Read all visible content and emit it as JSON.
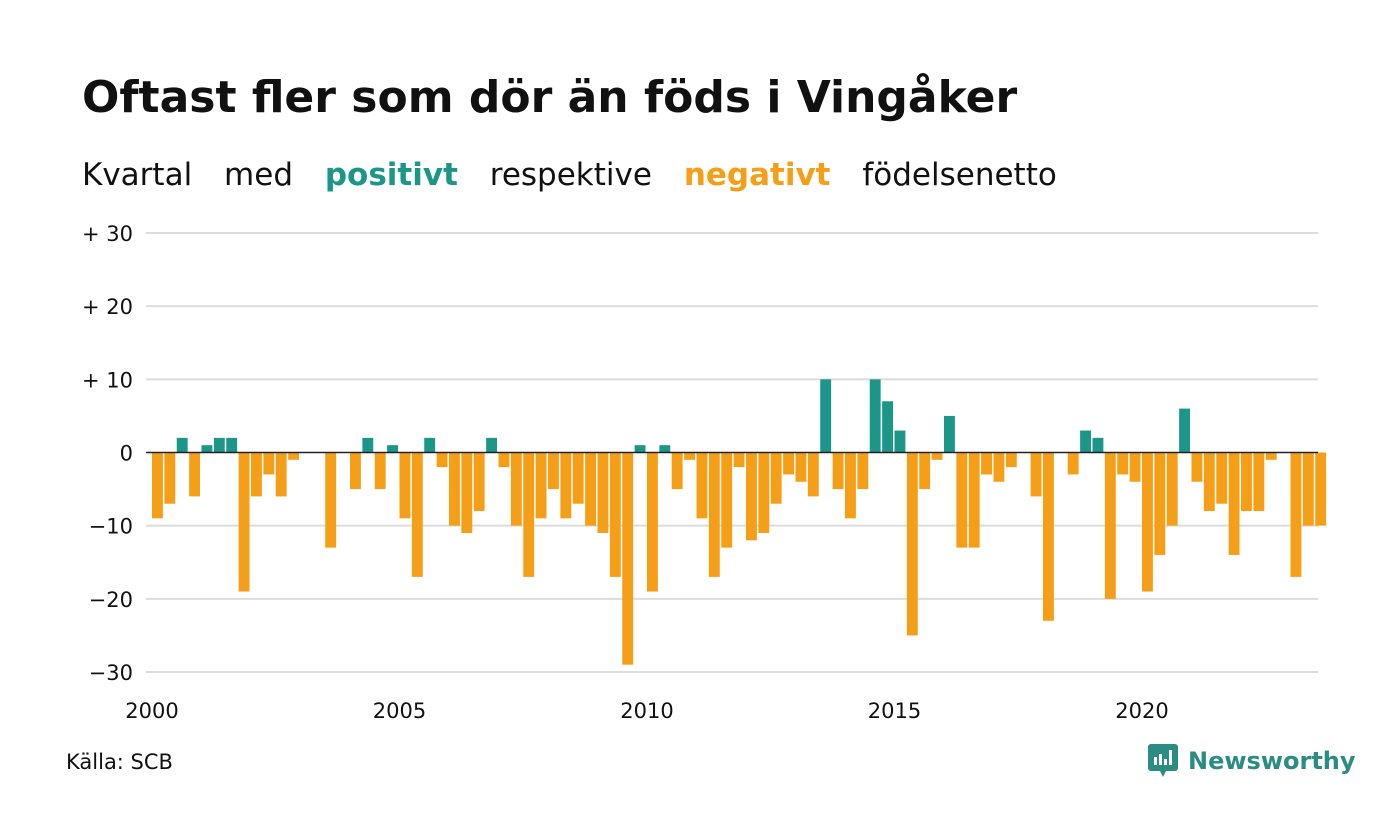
{
  "title": "Oftast fler som dör än föds i Vingåker",
  "subtitle": {
    "part1": "Kvartal",
    "part2": "med",
    "positive": "positivt",
    "part3": "respektive",
    "negative": "negativt",
    "part4": "födelsenetto"
  },
  "source": "Källa: SCB",
  "brand": "Newsworthy",
  "colors": {
    "positive": "#1b9688",
    "negative": "#f59f18",
    "grid": "#dcdcdc",
    "brand": "#2a8c82"
  },
  "chart_data": {
    "type": "bar",
    "title": "Oftast fler som dör än föds i Vingåker",
    "xlabel": "",
    "ylabel": "",
    "ylim": [
      -30,
      30
    ],
    "yticks": [
      30,
      20,
      10,
      0,
      -10,
      -20,
      -30
    ],
    "ytick_labels": [
      "+ 30",
      "+ 20",
      "+ 10",
      "0",
      "−10",
      "−20",
      "−30"
    ],
    "x_start": "2000 Q1",
    "xticks": [
      "2000",
      "2005",
      "2010",
      "2015",
      "2020"
    ],
    "xlim_years": [
      2000,
      2023.75
    ],
    "grid": true,
    "values": [
      -9,
      -7,
      2,
      -6,
      1,
      2,
      2,
      -19,
      -6,
      -3,
      -6,
      -1,
      0,
      0,
      -13,
      0,
      -5,
      2,
      -5,
      1,
      -9,
      -17,
      2,
      -2,
      -10,
      -11,
      -8,
      2,
      -2,
      -10,
      -17,
      -9,
      -5,
      -9,
      -7,
      -10,
      -11,
      -17,
      -29,
      1,
      -19,
      1,
      -5,
      -1,
      -9,
      -17,
      -13,
      -2,
      -12,
      -11,
      -7,
      -3,
      -4,
      -6,
      10,
      -5,
      -9,
      -5,
      10,
      7,
      3,
      -25,
      -5,
      -1,
      5,
      -13,
      -13,
      -3,
      -4,
      -2,
      0,
      -6,
      -23,
      0,
      -3,
      3,
      2,
      -20,
      -3,
      -4,
      -19,
      -14,
      -10,
      6,
      -4,
      -8,
      -7,
      -14,
      -8,
      -8,
      -1,
      0,
      -17,
      -10,
      -10
    ]
  }
}
